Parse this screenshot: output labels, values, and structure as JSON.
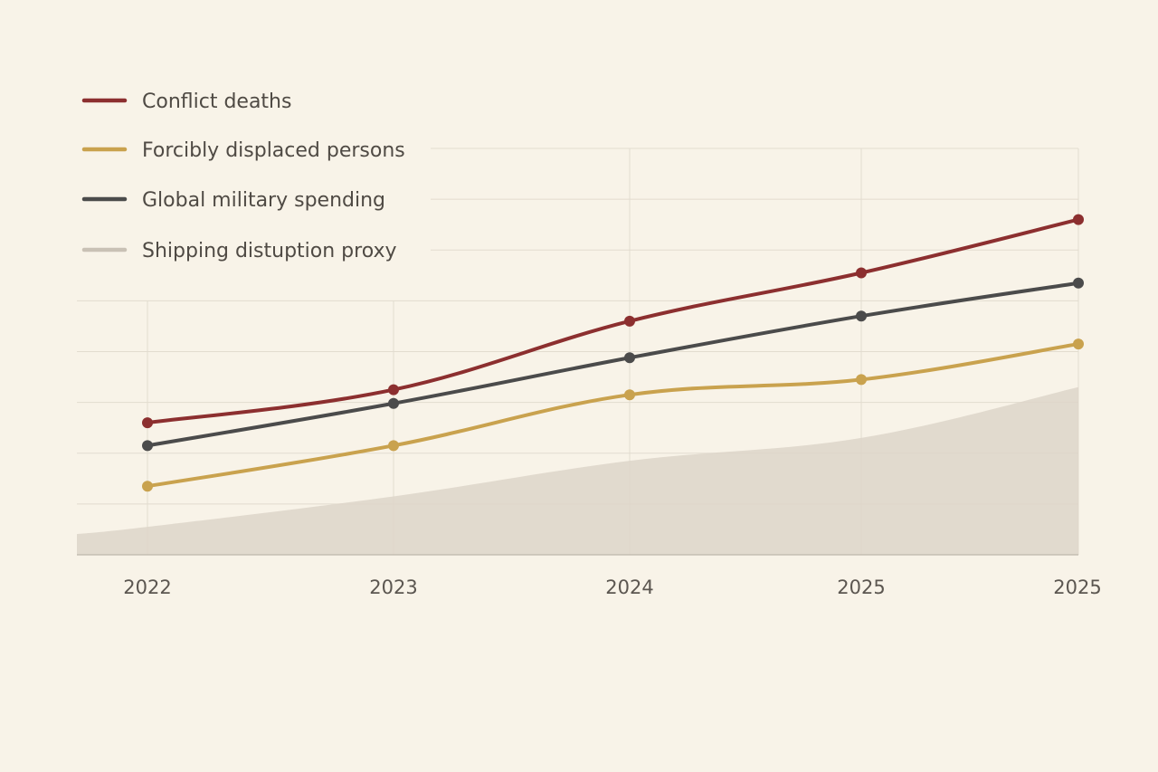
{
  "chart_data": {
    "type": "line",
    "x": [
      "2022",
      "2023",
      "2024",
      "2025",
      "2025"
    ],
    "series": [
      {
        "name": "Conflict deaths",
        "color": "#8c2f2f",
        "values": [
          26,
          32.5,
          46,
          55.5,
          66
        ]
      },
      {
        "name": "Forcibly displaced persons",
        "color": "#c9a24e",
        "values": [
          13.5,
          21.5,
          31.5,
          34.5,
          41.5
        ]
      },
      {
        "name": "Global military spending",
        "color": "#4b4b4b",
        "values": [
          21.5,
          29.8,
          38.8,
          47,
          53.5
        ]
      },
      {
        "name": "Shipping distuption proxy",
        "color": "#c9c1b5",
        "type": "area",
        "values": [
          5.5,
          11.5,
          18.5,
          23,
          33
        ]
      }
    ],
    "ylim": [
      0,
      80
    ],
    "grid": true,
    "legend": "top-left"
  }
}
